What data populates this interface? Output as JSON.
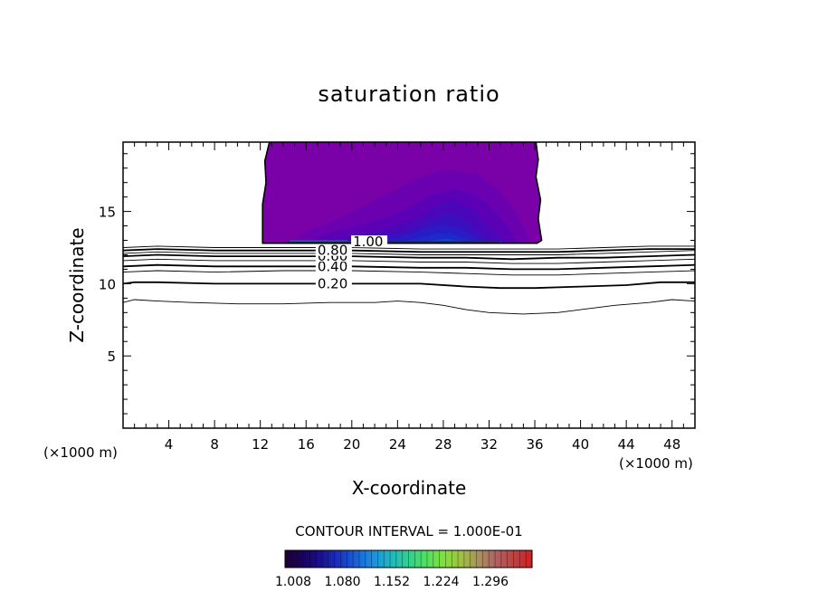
{
  "chart_data": {
    "type": "contour",
    "title": "saturation ratio",
    "xlabel": "X-coordinate",
    "ylabel": "Z-coordinate",
    "x_unit_left": "(×1000 m)",
    "x_unit_right": "(×1000 m)",
    "xlim": [
      0,
      50
    ],
    "ylim": [
      0,
      19.8
    ],
    "x_ticks": [
      4,
      8,
      12,
      16,
      20,
      24,
      28,
      32,
      36,
      40,
      44,
      48
    ],
    "y_ticks": [
      5,
      10,
      15
    ],
    "contour_interval_text": "CONTOUR INTERVAL = 1.000E-01",
    "contour_lines": [
      {
        "level": 0.1,
        "label": "",
        "heavy": false,
        "points": [
          [
            0,
            8.7
          ],
          [
            1,
            8.9
          ],
          [
            3,
            8.8
          ],
          [
            6,
            8.7
          ],
          [
            10,
            8.6
          ],
          [
            14,
            8.6
          ],
          [
            18,
            8.7
          ],
          [
            22,
            8.7
          ],
          [
            24,
            8.8
          ],
          [
            26,
            8.7
          ],
          [
            28,
            8.5
          ],
          [
            30,
            8.2
          ],
          [
            32,
            8.0
          ],
          [
            35,
            7.9
          ],
          [
            38,
            8.0
          ],
          [
            40,
            8.2
          ],
          [
            43,
            8.5
          ],
          [
            46,
            8.7
          ],
          [
            48,
            8.9
          ],
          [
            50,
            8.8
          ]
        ]
      },
      {
        "level": 0.2,
        "label": "0.20",
        "heavy": true,
        "label_x": 17.0,
        "points": [
          [
            0,
            10.0
          ],
          [
            1,
            10.1
          ],
          [
            3,
            10.1
          ],
          [
            8,
            10.0
          ],
          [
            14,
            10.0
          ],
          [
            18,
            10.0
          ],
          [
            22,
            10.0
          ],
          [
            26,
            10.0
          ],
          [
            30,
            9.8
          ],
          [
            33,
            9.7
          ],
          [
            36,
            9.7
          ],
          [
            40,
            9.8
          ],
          [
            44,
            9.9
          ],
          [
            47,
            10.1
          ],
          [
            50,
            10.1
          ]
        ]
      },
      {
        "level": 0.3,
        "label": "",
        "heavy": false,
        "points": [
          [
            0,
            10.8
          ],
          [
            3,
            10.9
          ],
          [
            8,
            10.8
          ],
          [
            14,
            10.9
          ],
          [
            20,
            10.9
          ],
          [
            26,
            10.8
          ],
          [
            30,
            10.7
          ],
          [
            34,
            10.6
          ],
          [
            38,
            10.6
          ],
          [
            42,
            10.7
          ],
          [
            46,
            10.8
          ],
          [
            50,
            10.9
          ]
        ]
      },
      {
        "level": 0.4,
        "label": "0.40",
        "heavy": true,
        "label_x": 17.0,
        "points": [
          [
            0,
            11.2
          ],
          [
            3,
            11.3
          ],
          [
            8,
            11.2
          ],
          [
            14,
            11.2
          ],
          [
            20,
            11.2
          ],
          [
            26,
            11.1
          ],
          [
            30,
            11.1
          ],
          [
            34,
            11.0
          ],
          [
            38,
            11.0
          ],
          [
            42,
            11.1
          ],
          [
            46,
            11.2
          ],
          [
            50,
            11.3
          ]
        ]
      },
      {
        "level": 0.5,
        "label": "",
        "heavy": false,
        "points": [
          [
            0,
            11.6
          ],
          [
            3,
            11.7
          ],
          [
            8,
            11.6
          ],
          [
            14,
            11.6
          ],
          [
            20,
            11.6
          ],
          [
            26,
            11.5
          ],
          [
            30,
            11.5
          ],
          [
            34,
            11.4
          ],
          [
            38,
            11.4
          ],
          [
            42,
            11.5
          ],
          [
            46,
            11.6
          ],
          [
            50,
            11.7
          ]
        ]
      },
      {
        "level": 0.6,
        "label": "0.60",
        "heavy": true,
        "label_x": 17.0,
        "points": [
          [
            0,
            11.9
          ],
          [
            3,
            12.0
          ],
          [
            8,
            11.9
          ],
          [
            14,
            11.9
          ],
          [
            20,
            11.9
          ],
          [
            26,
            11.8
          ],
          [
            30,
            11.8
          ],
          [
            34,
            11.7
          ],
          [
            38,
            11.8
          ],
          [
            42,
            11.8
          ],
          [
            46,
            11.9
          ],
          [
            50,
            12.0
          ]
        ]
      },
      {
        "level": 0.7,
        "label": "",
        "heavy": false,
        "points": [
          [
            0,
            12.1
          ],
          [
            3,
            12.2
          ],
          [
            8,
            12.1
          ],
          [
            14,
            12.1
          ],
          [
            20,
            12.1
          ],
          [
            26,
            12.0
          ],
          [
            30,
            12.0
          ],
          [
            34,
            12.0
          ],
          [
            38,
            12.0
          ],
          [
            42,
            12.1
          ],
          [
            46,
            12.2
          ],
          [
            50,
            12.3
          ]
        ]
      },
      {
        "level": 0.8,
        "label": "0.80",
        "heavy": true,
        "label_x": 17.0,
        "points": [
          [
            0,
            12.3
          ],
          [
            3,
            12.4
          ],
          [
            8,
            12.3
          ],
          [
            14,
            12.3
          ],
          [
            20,
            12.3
          ],
          [
            26,
            12.2
          ],
          [
            30,
            12.2
          ],
          [
            34,
            12.2
          ],
          [
            38,
            12.2
          ],
          [
            42,
            12.3
          ],
          [
            46,
            12.4
          ],
          [
            50,
            12.4
          ]
        ]
      },
      {
        "level": 0.9,
        "label": "",
        "heavy": false,
        "points": [
          [
            0,
            12.5
          ],
          [
            3,
            12.6
          ],
          [
            8,
            12.5
          ],
          [
            14,
            12.5
          ],
          [
            20,
            12.5
          ],
          [
            26,
            12.4
          ],
          [
            30,
            12.4
          ],
          [
            34,
            12.4
          ],
          [
            38,
            12.4
          ],
          [
            42,
            12.5
          ],
          [
            46,
            12.6
          ],
          [
            50,
            12.6
          ]
        ]
      },
      {
        "level": 1.0,
        "label": "1.00",
        "heavy": true,
        "label_x": 20.1,
        "points": [
          [
            14.3,
            12.9
          ],
          [
            33.0,
            12.9
          ]
        ]
      }
    ],
    "cloud_region": {
      "outline": [
        [
          12.2,
          12.8
        ],
        [
          12.2,
          15.5
        ],
        [
          12.5,
          17.0
        ],
        [
          12.4,
          18.5
        ],
        [
          12.8,
          19.8
        ],
        [
          36.1,
          19.8
        ],
        [
          36.3,
          18.6
        ],
        [
          36.1,
          17.4
        ],
        [
          36.5,
          15.8
        ],
        [
          36.3,
          14.5
        ],
        [
          36.6,
          13.0
        ],
        [
          36.2,
          12.8
        ]
      ],
      "layers": [
        {
          "value": 1.01,
          "color": "#7A00A8",
          "points": [
            [
              12.2,
              12.8
            ],
            [
              12.2,
              15.5
            ],
            [
              12.5,
              17.0
            ],
            [
              12.4,
              18.5
            ],
            [
              12.8,
              19.8
            ],
            [
              36.1,
              19.8
            ],
            [
              36.3,
              18.6
            ],
            [
              36.1,
              17.4
            ],
            [
              36.5,
              15.8
            ],
            [
              36.3,
              14.5
            ],
            [
              36.6,
              13.0
            ],
            [
              36.2,
              12.8
            ]
          ]
        },
        {
          "value": 1.02,
          "color": "#6A00B0",
          "points": [
            [
              14.5,
              12.8
            ],
            [
              16,
              13.6
            ],
            [
              18,
              14.2
            ],
            [
              20,
              15.0
            ],
            [
              23,
              16.2
            ],
            [
              26,
              17.4
            ],
            [
              28,
              17.9
            ],
            [
              31,
              17.6
            ],
            [
              33,
              16.4
            ],
            [
              34.5,
              14.8
            ],
            [
              35.2,
              13.6
            ],
            [
              35.6,
              12.8
            ]
          ]
        },
        {
          "value": 1.03,
          "color": "#5C00B6",
          "points": [
            [
              15.5,
              12.8
            ],
            [
              18,
              13.5
            ],
            [
              21,
              14.1
            ],
            [
              23,
              14.6
            ],
            [
              25,
              15.3
            ],
            [
              27,
              16.2
            ],
            [
              29,
              16.6
            ],
            [
              31,
              16.1
            ],
            [
              32.5,
              15.0
            ],
            [
              33.8,
              13.8
            ],
            [
              34.5,
              12.8
            ]
          ]
        },
        {
          "value": 1.04,
          "color": "#4B06BA",
          "points": [
            [
              17,
              12.8
            ],
            [
              20,
              13.3
            ],
            [
              23,
              13.8
            ],
            [
              25.5,
              14.5
            ],
            [
              27.5,
              15.5
            ],
            [
              29,
              15.8
            ],
            [
              30.5,
              15.2
            ],
            [
              31.8,
              14.2
            ],
            [
              33,
              13.2
            ],
            [
              33.5,
              12.8
            ]
          ]
        },
        {
          "value": 1.05,
          "color": "#3A10BE",
          "points": [
            [
              19,
              12.8
            ],
            [
              22,
              13.2
            ],
            [
              25,
              13.7
            ],
            [
              27,
              14.5
            ],
            [
              28.5,
              14.9
            ],
            [
              30,
              14.4
            ],
            [
              31,
              13.7
            ],
            [
              32,
              13.0
            ],
            [
              32.5,
              12.8
            ]
          ]
        },
        {
          "value": 1.06,
          "color": "#2A1CC4",
          "points": [
            [
              21,
              12.8
            ],
            [
              24,
              13.2
            ],
            [
              26.5,
              13.8
            ],
            [
              28,
              14.1
            ],
            [
              29.5,
              13.8
            ],
            [
              30.8,
              13.2
            ],
            [
              31.5,
              12.8
            ]
          ]
        },
        {
          "value": 1.07,
          "color": "#1C2ACC",
          "points": [
            [
              23,
              12.8
            ],
            [
              25.5,
              13.1
            ],
            [
              27.2,
              13.4
            ],
            [
              28.6,
              13.5
            ],
            [
              30,
              13.1
            ],
            [
              30.8,
              12.8
            ]
          ]
        },
        {
          "value": 1.08,
          "color": "#1244D8",
          "points": [
            [
              25.5,
              12.8
            ],
            [
              27,
              13.0
            ],
            [
              28.3,
              13.1
            ],
            [
              29.5,
              12.95
            ],
            [
              30.2,
              12.8
            ]
          ]
        },
        {
          "value": 1.1,
          "color": "#1A8AEA",
          "points": [
            [
              26.5,
              12.8
            ],
            [
              27.6,
              12.9
            ],
            [
              28.6,
              12.95
            ],
            [
              29.4,
              12.85
            ],
            [
              29.8,
              12.8
            ]
          ]
        },
        {
          "value": 1.12,
          "color": "#2EC8C0",
          "points": [
            [
              14.5,
              12.8
            ],
            [
              14.6,
              12.98
            ],
            [
              19.5,
              12.98
            ],
            [
              20.5,
              12.9
            ],
            [
              33,
              12.92
            ],
            [
              33.1,
              12.8
            ]
          ]
        },
        {
          "value": 1.15,
          "color": "#5FF07A",
          "points": [
            [
              14.6,
              12.83
            ],
            [
              14.7,
              12.93
            ],
            [
              19.2,
              12.93
            ],
            [
              19.4,
              12.83
            ]
          ]
        }
      ]
    },
    "colorbar": {
      "tick_labels": [
        "1.008",
        "1.080",
        "1.152",
        "1.224",
        "1.296"
      ],
      "colors": [
        "#1E0030",
        "#1A0060",
        "#1A1090",
        "#1A30C0",
        "#1A60D8",
        "#1A90E0",
        "#20B8C0",
        "#30D090",
        "#50E060",
        "#80E040",
        "#A0C040",
        "#A89060",
        "#B06060",
        "#C04040",
        "#D02020"
      ]
    }
  }
}
